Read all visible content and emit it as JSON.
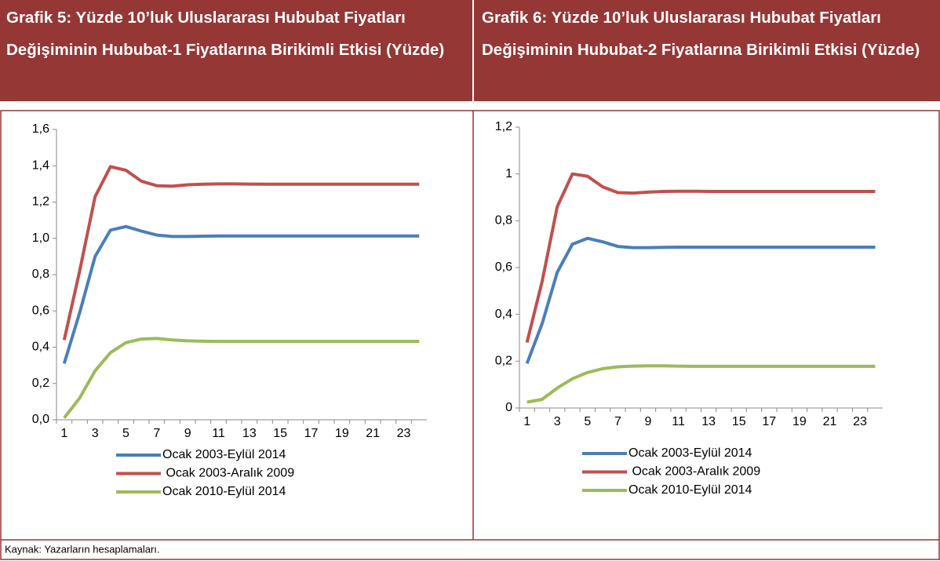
{
  "chart_data": [
    {
      "type": "line",
      "title": "Grafik 5: Yüzde 10’luk Uluslararası Hububat Fiyatları Değişiminin Hububat-1 Fiyatlarına Birikimli Etkisi (Yüzde)",
      "categories": [
        1,
        null,
        3,
        null,
        5,
        null,
        7,
        null,
        9,
        null,
        11,
        null,
        13,
        null,
        15,
        null,
        17,
        null,
        19,
        null,
        21,
        null,
        23,
        null
      ],
      "ylim": [
        0,
        1.6
      ],
      "yticks": [
        {
          "value": 0,
          "label": "0,0"
        },
        {
          "value": 0.2,
          "label": "0,2"
        },
        {
          "value": 0.4,
          "label": "0,4"
        },
        {
          "value": 0.6,
          "label": "0,6"
        },
        {
          "value": 0.8,
          "label": "0,8"
        },
        {
          "value": 1.0,
          "label": "1,0"
        },
        {
          "value": 1.2,
          "label": "1,2"
        },
        {
          "value": 1.4,
          "label": "1,4"
        },
        {
          "value": 1.6,
          "label": "1,6"
        }
      ],
      "grid": false,
      "series": [
        {
          "name": "Ocak 2003-Eylül 2014",
          "color": "#4a7ebb",
          "values": [
            0.31,
            0.59,
            0.9,
            1.045,
            1.065,
            1.04,
            1.018,
            1.01,
            1.01,
            1.012,
            1.013,
            1.013,
            1.013,
            1.013,
            1.013,
            1.013,
            1.013,
            1.013,
            1.013,
            1.013,
            1.013,
            1.013,
            1.013,
            1.013
          ]
        },
        {
          "name": " Ocak 2003-Aralık 2009",
          "color": "#c0504d",
          "values": [
            0.44,
            0.82,
            1.23,
            1.395,
            1.375,
            1.315,
            1.29,
            1.288,
            1.295,
            1.298,
            1.3,
            1.3,
            1.299,
            1.298,
            1.298,
            1.298,
            1.298,
            1.298,
            1.298,
            1.298,
            1.298,
            1.298,
            1.298,
            1.298
          ]
        },
        {
          "name": "Ocak 2010-Eylül 2014",
          "color": "#9bbb59",
          "values": [
            0.01,
            0.12,
            0.27,
            0.37,
            0.425,
            0.445,
            0.448,
            0.44,
            0.435,
            0.433,
            0.432,
            0.432,
            0.432,
            0.432,
            0.432,
            0.432,
            0.432,
            0.432,
            0.432,
            0.432,
            0.432,
            0.432,
            0.432,
            0.432
          ]
        }
      ]
    },
    {
      "type": "line",
      "title": "Grafik 6: Yüzde 10’luk Uluslararası Hububat Fiyatları Değişiminin Hububat-2 Fiyatlarına Birikimli Etkisi (Yüzde)",
      "categories": [
        1,
        null,
        3,
        null,
        5,
        null,
        7,
        null,
        9,
        null,
        11,
        null,
        13,
        null,
        15,
        null,
        17,
        null,
        19,
        null,
        21,
        null,
        23,
        null
      ],
      "ylim": [
        0,
        1.2
      ],
      "yticks": [
        0,
        {
          "value": 0.2,
          "label": "0,2"
        },
        {
          "value": 0.4,
          "label": "0,4"
        },
        {
          "value": 0.6,
          "label": "0,6"
        },
        {
          "value": 0.8,
          "label": "0,8"
        },
        1,
        {
          "value": 1.2,
          "label": "1,2"
        }
      ],
      "grid": false,
      "series": [
        {
          "name": "Ocak 2003-Eylül 2014",
          "color": "#4a7ebb",
          "values": [
            0.19,
            0.36,
            0.58,
            0.7,
            0.725,
            0.71,
            0.69,
            0.685,
            0.685,
            0.686,
            0.687,
            0.687,
            0.687,
            0.687,
            0.687,
            0.687,
            0.687,
            0.687,
            0.687,
            0.687,
            0.687,
            0.687,
            0.687,
            0.687
          ]
        },
        {
          "name": " Ocak 2003-Aralık 2009",
          "color": "#c0504d",
          "values": [
            0.28,
            0.54,
            0.86,
            1.0,
            0.99,
            0.945,
            0.92,
            0.918,
            0.922,
            0.925,
            0.926,
            0.926,
            0.925,
            0.925,
            0.925,
            0.925,
            0.925,
            0.925,
            0.925,
            0.925,
            0.925,
            0.925,
            0.925,
            0.925
          ]
        },
        {
          "name": "Ocak 2010-Eylül 2014",
          "color": "#9bbb59",
          "values": [
            0.025,
            0.037,
            0.085,
            0.125,
            0.152,
            0.168,
            0.176,
            0.179,
            0.18,
            0.18,
            0.179,
            0.178,
            0.178,
            0.178,
            0.178,
            0.178,
            0.178,
            0.178,
            0.178,
            0.178,
            0.178,
            0.178,
            0.178,
            0.178
          ]
        }
      ]
    }
  ],
  "footer": "Kaynak: Yazarların hesaplamaları."
}
